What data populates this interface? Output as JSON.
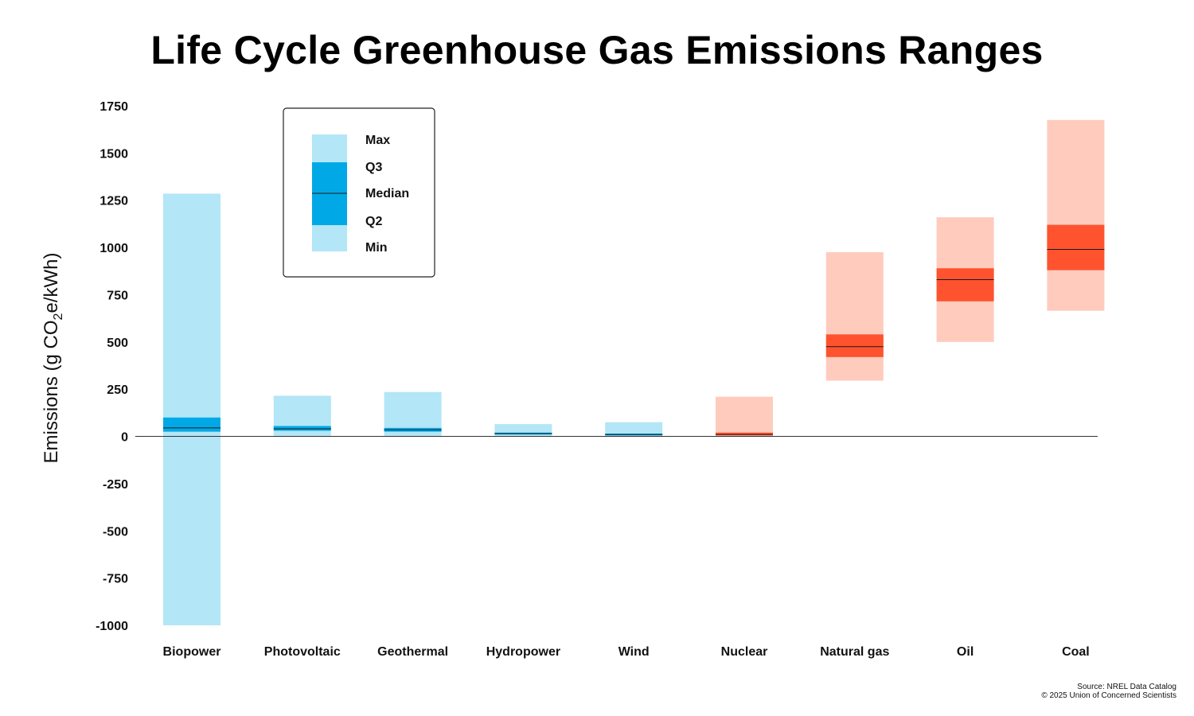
{
  "title": "Life Cycle Greenhouse Gas Emissions Ranges",
  "source_line1": "Source: NREL Data Catalog",
  "source_line2": "© 2025 Union of Concerned Scientists",
  "colors": {
    "renewable_light": "#b3e6f7",
    "renewable_dark": "#00a9e6",
    "fossil_light": "#fecbbd",
    "fossil_dark": "#fe532e",
    "median_line": "#1a1a1a"
  },
  "legend": {
    "items": [
      "Max",
      "Q3",
      "Median",
      "Q2",
      "Min"
    ]
  },
  "chart_data": {
    "type": "box",
    "ylabel_prefix": "Emissions (g CO",
    "ylabel_sub": "2",
    "ylabel_suffix": "e/kWh)",
    "ylim": [
      -1000,
      1750
    ],
    "yticks": [
      1750,
      1500,
      1250,
      1000,
      750,
      500,
      250,
      0,
      -250,
      -500,
      -750,
      -1000
    ],
    "grid": false,
    "legend_position": "top-left",
    "categories": [
      "Biopower",
      "Photovoltaic",
      "Geothermal",
      "Hydropower",
      "Wind",
      "Nuclear",
      "Natural gas",
      "Oil",
      "Coal"
    ],
    "series": [
      {
        "category": "Biopower",
        "group": "renewable",
        "min": -1000,
        "q2": 25,
        "median": 45,
        "q3": 100,
        "max": 1285
      },
      {
        "category": "Photovoltaic",
        "group": "renewable",
        "min": 2,
        "q2": 30,
        "median": 40,
        "q3": 55,
        "max": 215
      },
      {
        "category": "Geothermal",
        "group": "renewable",
        "min": 2,
        "q2": 25,
        "median": 35,
        "q3": 45,
        "max": 235
      },
      {
        "category": "Hydropower",
        "group": "renewable",
        "min": 0,
        "q2": 10,
        "median": 15,
        "q3": 20,
        "max": 65
      },
      {
        "category": "Wind",
        "group": "renewable",
        "min": 0,
        "q2": 5,
        "median": 10,
        "q3": 15,
        "max": 75
      },
      {
        "category": "Nuclear",
        "group": "fossil",
        "min": 0,
        "q2": 5,
        "median": 10,
        "q3": 20,
        "max": 210
      },
      {
        "category": "Natural gas",
        "group": "fossil",
        "min": 295,
        "q2": 420,
        "median": 475,
        "q3": 540,
        "max": 975
      },
      {
        "category": "Oil",
        "group": "fossil",
        "min": 500,
        "q2": 715,
        "median": 830,
        "q3": 890,
        "max": 1160
      },
      {
        "category": "Coal",
        "group": "fossil",
        "min": 665,
        "q2": 880,
        "median": 990,
        "q3": 1120,
        "max": 1675
      }
    ]
  }
}
